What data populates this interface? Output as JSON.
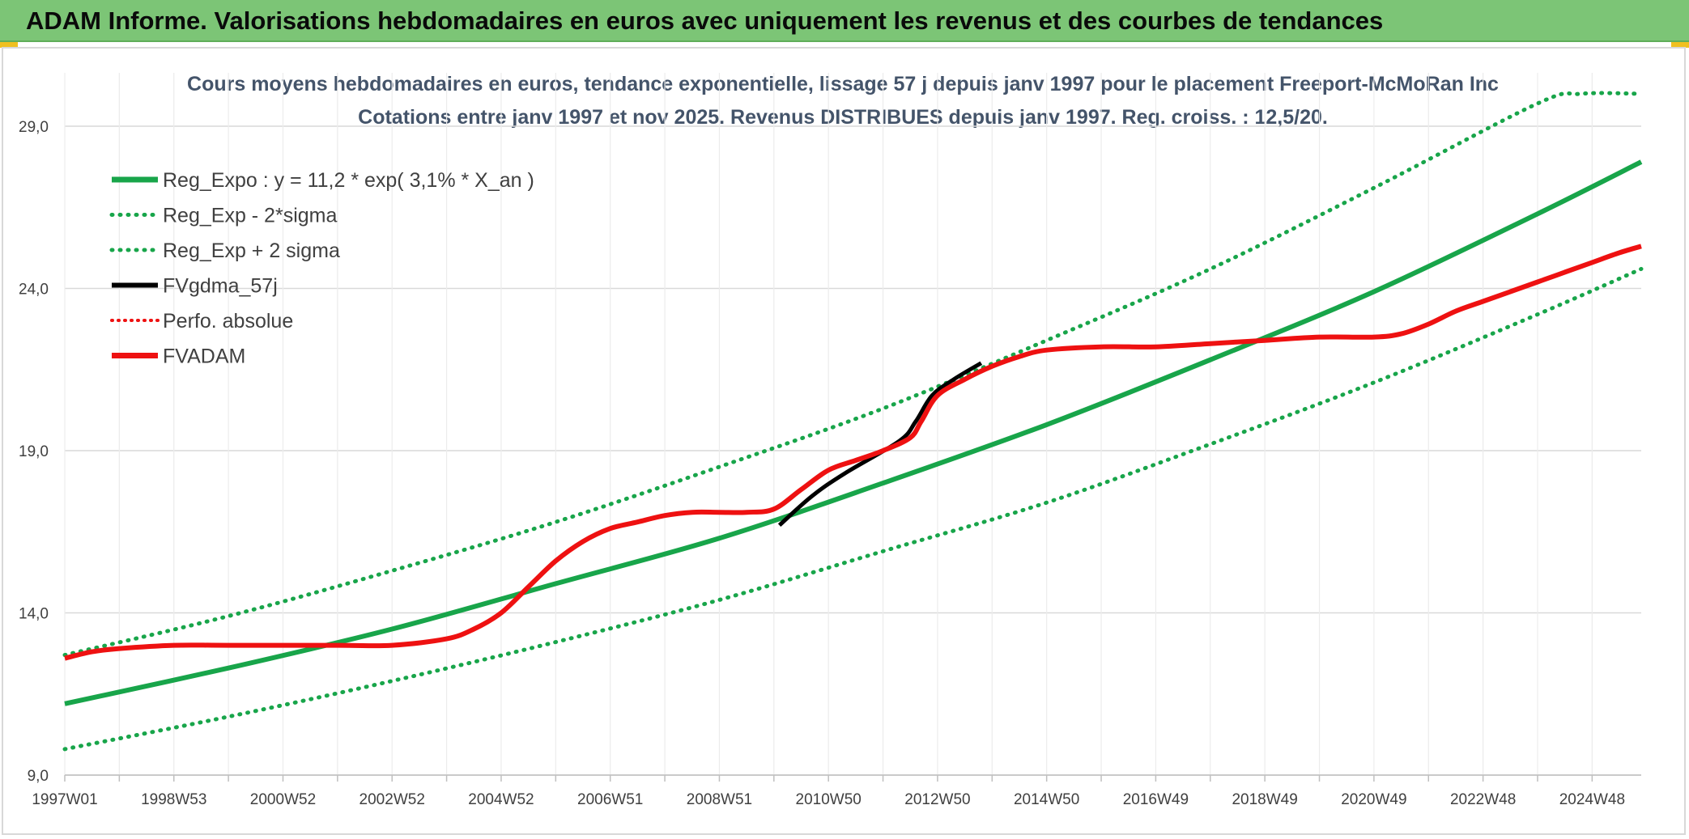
{
  "header": {
    "title": "ADAM Informe. Valorisations hebdomadaires en euros avec uniquement les revenus et des courbes de tendances"
  },
  "colors": {
    "header_bg": "#7cc576",
    "trend_green": "#18a54a",
    "fvadam_red": "#ee1111",
    "fvgdma_black": "#000000",
    "grid": "#d9d9d9"
  },
  "chart_data": {
    "type": "line",
    "title": "Cours moyens hebdomadaires en euros, tendance exponentielle, lissage 57 j depuis janv 1997 pour le placement Freeport-McMoRan Inc",
    "subtitle": "Cotations entre janv 1997 et nov 2025. Revenus DISTRIBUES depuis janv 1997. Reg. croiss. : 12,5/20.",
    "x_tick_labels": [
      "1997W01",
      "1998W53",
      "2000W52",
      "2002W52",
      "2004W52",
      "2006W51",
      "2008W51",
      "2010W50",
      "2012W50",
      "2014W50",
      "2016W49",
      "2018W49",
      "2020W49",
      "2022W48",
      "2024W48"
    ],
    "x_tick_years": [
      1997.0,
      1999.0,
      2001.0,
      2003.0,
      2005.0,
      2007.0,
      2009.0,
      2011.0,
      2013.0,
      2015.0,
      2017.0,
      2019.0,
      2021.0,
      2023.0,
      2025.0
    ],
    "x_range": [
      1997.0,
      2025.9
    ],
    "y_tick_labels": [
      "9,0",
      "14,0",
      "19,0",
      "24,0",
      "29,0"
    ],
    "ylim": [
      9,
      29
    ],
    "grid": true,
    "legend_position": "top-left",
    "legend": [
      {
        "label": "Reg_Expo : y = 11,2 * exp( 3,1% *  X_an )",
        "color": "#18a54a",
        "style": "solid"
      },
      {
        "label": "Reg_Exp - 2*sigma",
        "color": "#18a54a",
        "style": "dotted"
      },
      {
        "label": "Reg_Exp + 2 sigma",
        "color": "#18a54a",
        "style": "dotted"
      },
      {
        "label": "FVgdma_57j",
        "color": "#000000",
        "style": "solid"
      },
      {
        "label": "Perfo. absolue",
        "color": "#ee1111",
        "style": "dotted"
      },
      {
        "label": "FVADAM",
        "color": "#ee1111",
        "style": "solid"
      }
    ],
    "series": [
      {
        "name": "Reg_Expo : y = 11,2 * exp( 3,1% *  X_an )",
        "x": [
          1997.0,
          2000.0,
          2003.0,
          2006.0,
          2009.0,
          2012.0,
          2015.0,
          2018.0,
          2021.0,
          2024.0,
          2025.9
        ],
        "y": [
          11.2,
          12.3,
          13.5,
          14.9,
          16.3,
          18.0,
          19.8,
          21.8,
          23.9,
          26.3,
          27.9
        ]
      },
      {
        "name": "Reg_Exp - 2*sigma",
        "x": [
          1997.0,
          2000.0,
          2003.0,
          2006.0,
          2009.0,
          2012.0,
          2015.0,
          2018.0,
          2021.0,
          2024.0,
          2025.9
        ],
        "y": [
          9.8,
          10.8,
          11.9,
          13.1,
          14.4,
          15.9,
          17.4,
          19.2,
          21.1,
          23.2,
          24.6
        ]
      },
      {
        "name": "Reg_Exp + 2 sigma",
        "x": [
          1997.0,
          2000.0,
          2003.0,
          2006.0,
          2009.0,
          2012.0,
          2015.0,
          2018.0,
          2021.0,
          2024.0,
          2024.8,
          2025.9
        ],
        "y": [
          12.7,
          13.9,
          15.3,
          16.8,
          18.5,
          20.3,
          22.4,
          24.6,
          27.1,
          29.7,
          30.0,
          30.0
        ]
      },
      {
        "name": "FVgdma_57j",
        "x": [
          2010.1,
          2010.7,
          2011.3,
          2012.3,
          2012.6,
          2012.9,
          2013.3,
          2013.8
        ],
        "y": [
          16.7,
          17.6,
          18.3,
          19.3,
          19.9,
          20.7,
          21.2,
          21.7
        ]
      },
      {
        "name": "FVADAM",
        "x": [
          1997.0,
          1997.5,
          1998.0,
          1999.0,
          2000.0,
          2002.0,
          2003.0,
          2004.0,
          2004.5,
          2005.0,
          2005.5,
          2006.0,
          2006.5,
          2007.0,
          2007.5,
          2008.0,
          2008.5,
          2009.0,
          2009.5,
          2010.0,
          2010.5,
          2011.0,
          2011.5,
          2012.0,
          2012.5,
          2012.7,
          2013.0,
          2013.5,
          2014.0,
          2014.5,
          2015.0,
          2016.0,
          2017.0,
          2018.0,
          2019.0,
          2020.0,
          2021.0,
          2021.5,
          2022.0,
          2022.5,
          2023.0,
          2023.5,
          2024.0,
          2024.5,
          2025.0,
          2025.5,
          2025.9
        ],
        "y": [
          12.6,
          12.8,
          12.9,
          13.0,
          13.0,
          13.0,
          13.0,
          13.2,
          13.5,
          14.0,
          14.8,
          15.6,
          16.2,
          16.6,
          16.8,
          17.0,
          17.1,
          17.1,
          17.1,
          17.2,
          17.8,
          18.4,
          18.7,
          19.0,
          19.4,
          19.9,
          20.7,
          21.2,
          21.6,
          21.9,
          22.1,
          22.2,
          22.2,
          22.3,
          22.4,
          22.5,
          22.5,
          22.6,
          22.9,
          23.3,
          23.6,
          23.9,
          24.2,
          24.5,
          24.8,
          25.1,
          25.3
        ]
      }
    ]
  }
}
